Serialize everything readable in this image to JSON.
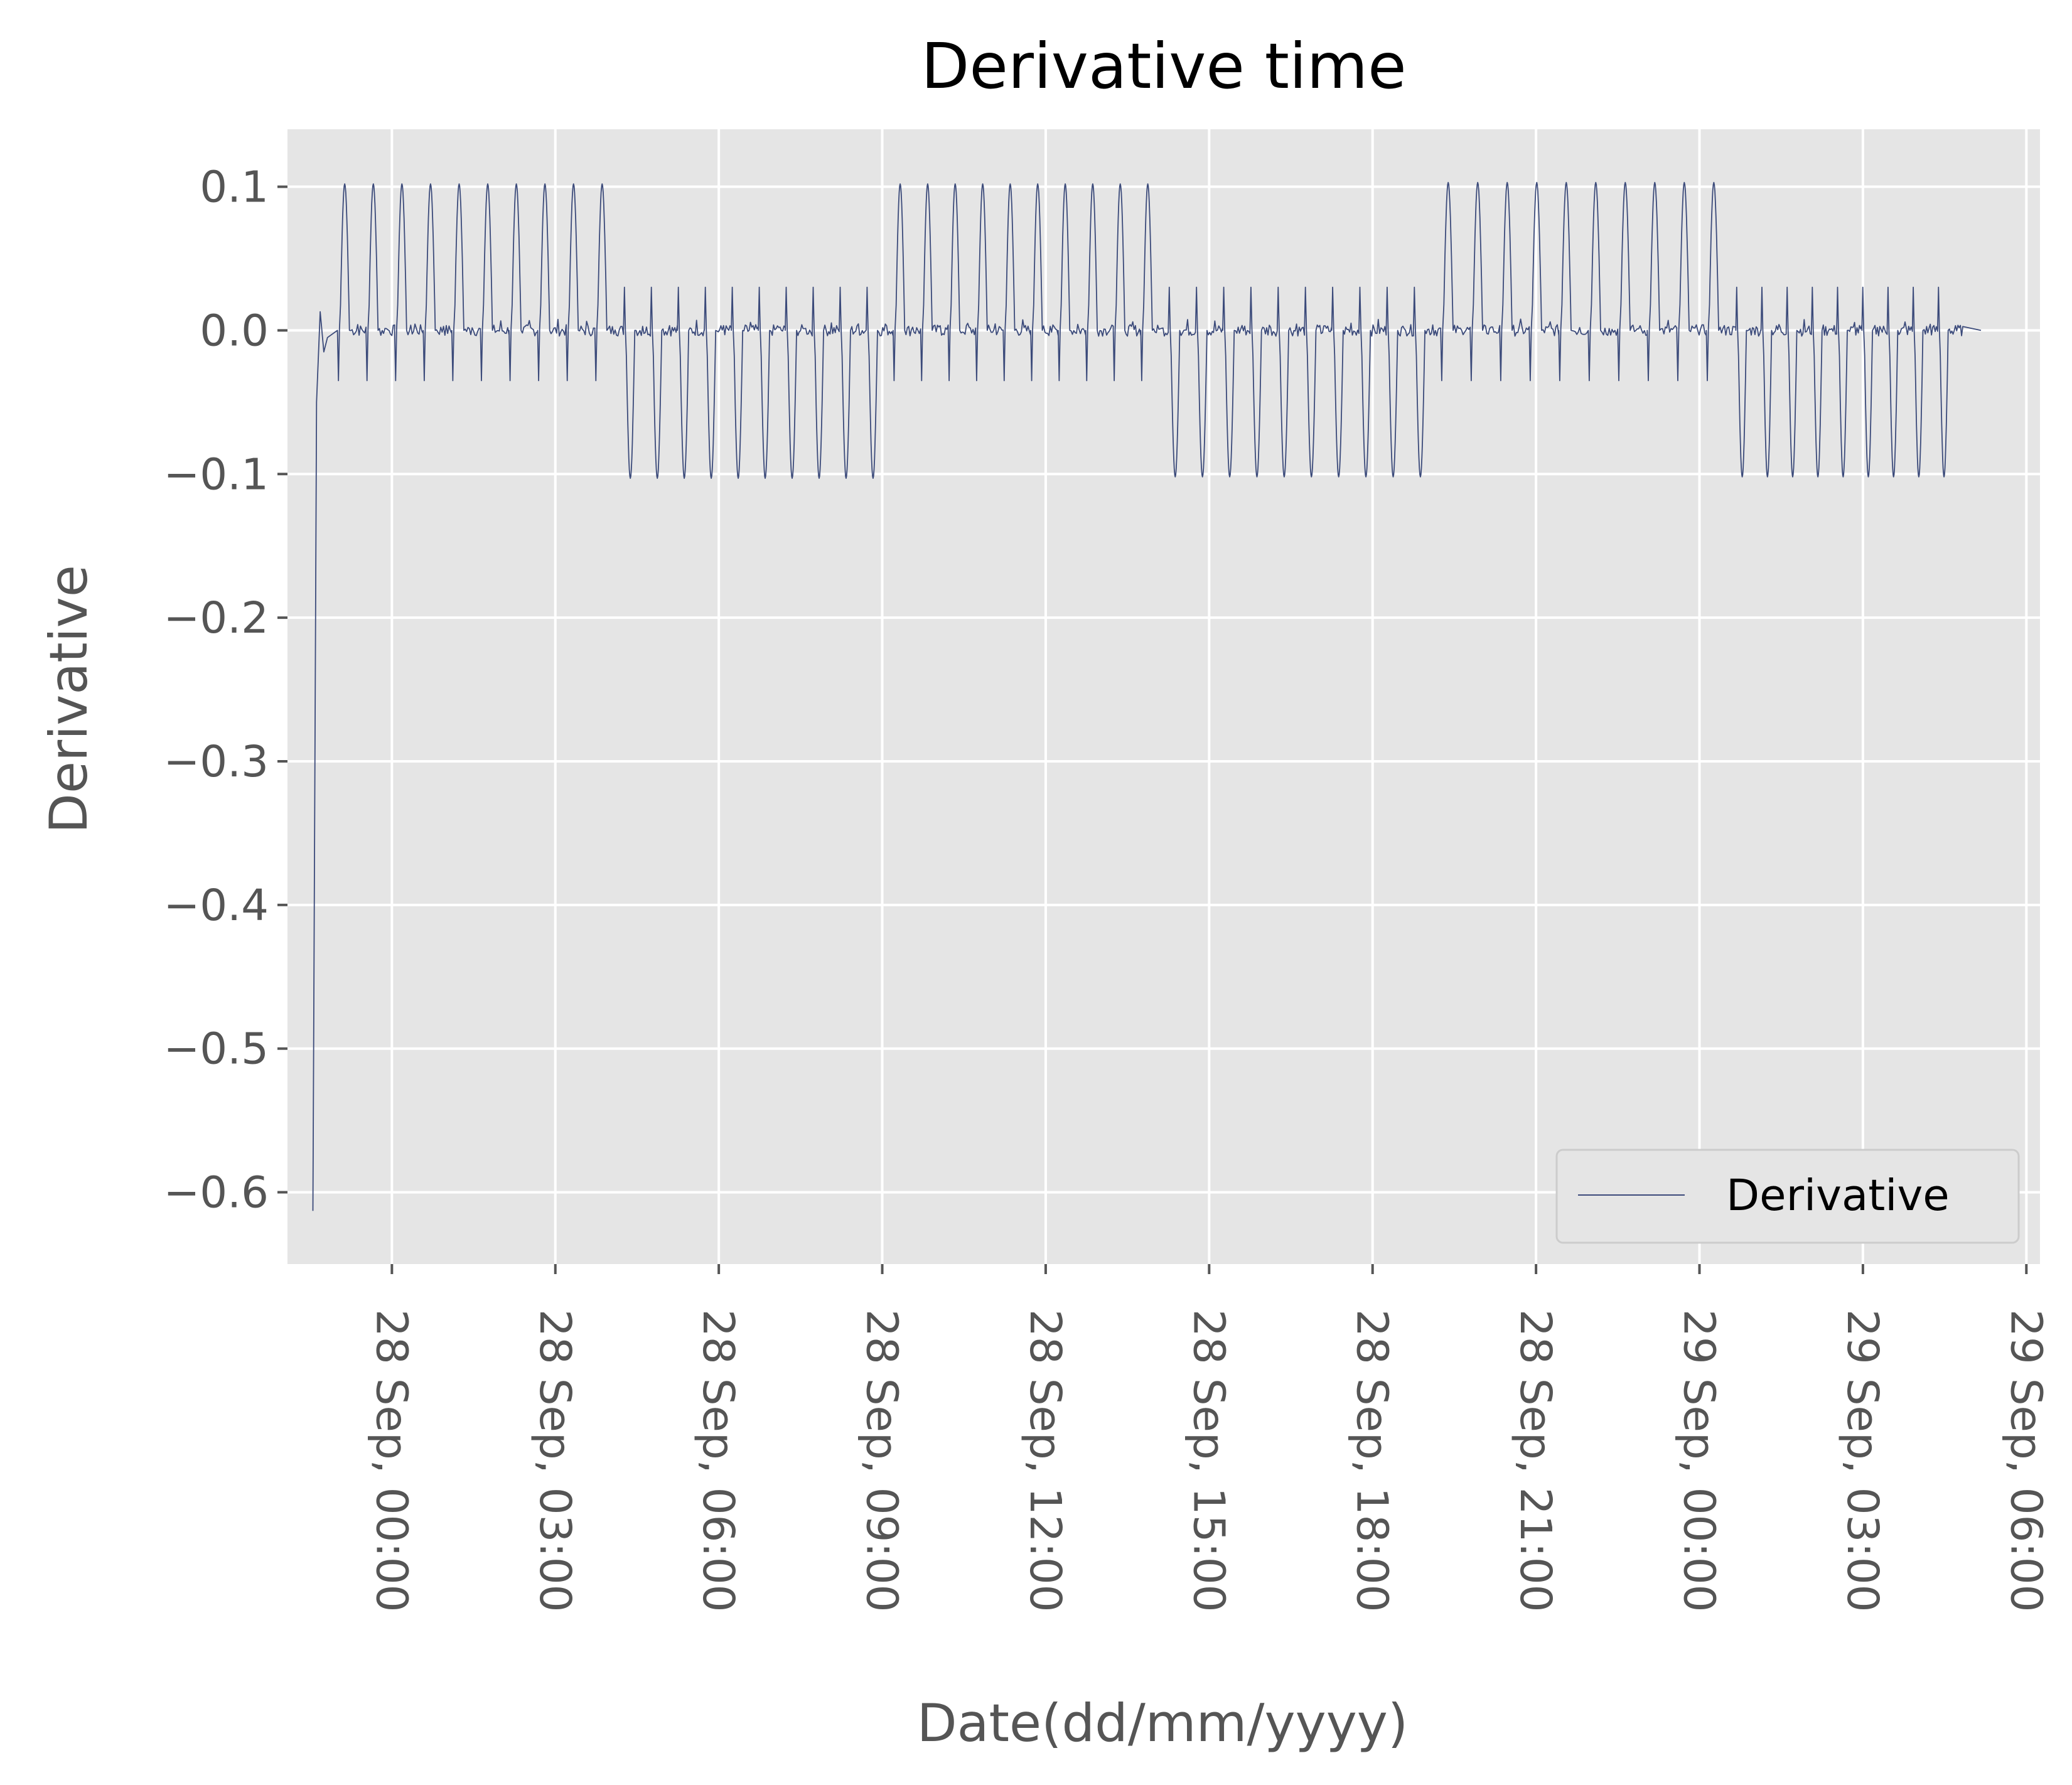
{
  "chart_data": {
    "type": "line",
    "title": "Derivative time",
    "xlabel": "Date(dd/mm/yyyy)",
    "ylabel": "Derivative",
    "x_domain": [
      "2023-09-27 22:05",
      "2023-09-29 06:15"
    ],
    "ylim": [
      -0.65,
      0.14
    ],
    "y_ticks": [
      0.1,
      0.0,
      -0.1,
      -0.2,
      -0.3,
      -0.4,
      -0.5,
      -0.6
    ],
    "y_tick_labels": [
      "0.1",
      "0.0",
      "−0.1",
      "−0.2",
      "−0.3",
      "−0.4",
      "−0.5",
      "−0.6"
    ],
    "x_ticks": [
      "2023-09-28 00:00",
      "2023-09-28 03:00",
      "2023-09-28 06:00",
      "2023-09-28 09:00",
      "2023-09-28 12:00",
      "2023-09-28 15:00",
      "2023-09-28 18:00",
      "2023-09-28 21:00",
      "2023-09-29 00:00",
      "2023-09-29 03:00",
      "2023-09-29 06:00"
    ],
    "x_tick_labels": [
      "28 Sep, 00:00",
      "28 Sep, 03:00",
      "28 Sep, 06:00",
      "28 Sep, 09:00",
      "28 Sep, 12:00",
      "28 Sep, 15:00",
      "28 Sep, 18:00",
      "28 Sep, 21:00",
      "29 Sep, 00:00",
      "29 Sep, 03:00",
      "29 Sep, 06:00"
    ],
    "grid": true,
    "legend_position": "lower-right",
    "series": [
      {
        "name": "Derivative",
        "color": "#3b4a7a",
        "start": "2023-09-27 22:33",
        "initial_values": [
          -0.613,
          -0.05,
          0.013,
          -0.015,
          -0.005
        ],
        "segments": [
          {
            "start": "2023-09-27 23:00",
            "end": "2023-09-28 04:15",
            "cycles": 10,
            "low": -0.035,
            "high": 0.102
          },
          {
            "start": "2023-09-28 04:15",
            "end": "2023-09-28 09:12",
            "cycles": 10,
            "low": -0.103,
            "high": 0.03
          },
          {
            "start": "2023-09-28 09:12",
            "end": "2023-09-28 14:15",
            "cycles": 10,
            "low": -0.035,
            "high": 0.102
          },
          {
            "start": "2023-09-28 14:15",
            "end": "2023-09-28 19:15",
            "cycles": 10,
            "low": -0.102,
            "high": 0.03
          },
          {
            "start": "2023-09-28 19:15",
            "end": "2023-09-29 00:40",
            "cycles": 10,
            "low": -0.035,
            "high": 0.103
          },
          {
            "start": "2023-09-29 00:40",
            "end": "2023-09-29 04:50",
            "cycles": 9,
            "low": -0.102,
            "high": 0.03
          }
        ],
        "end": "2023-09-29 05:10",
        "end_value": 0.0
      }
    ]
  }
}
